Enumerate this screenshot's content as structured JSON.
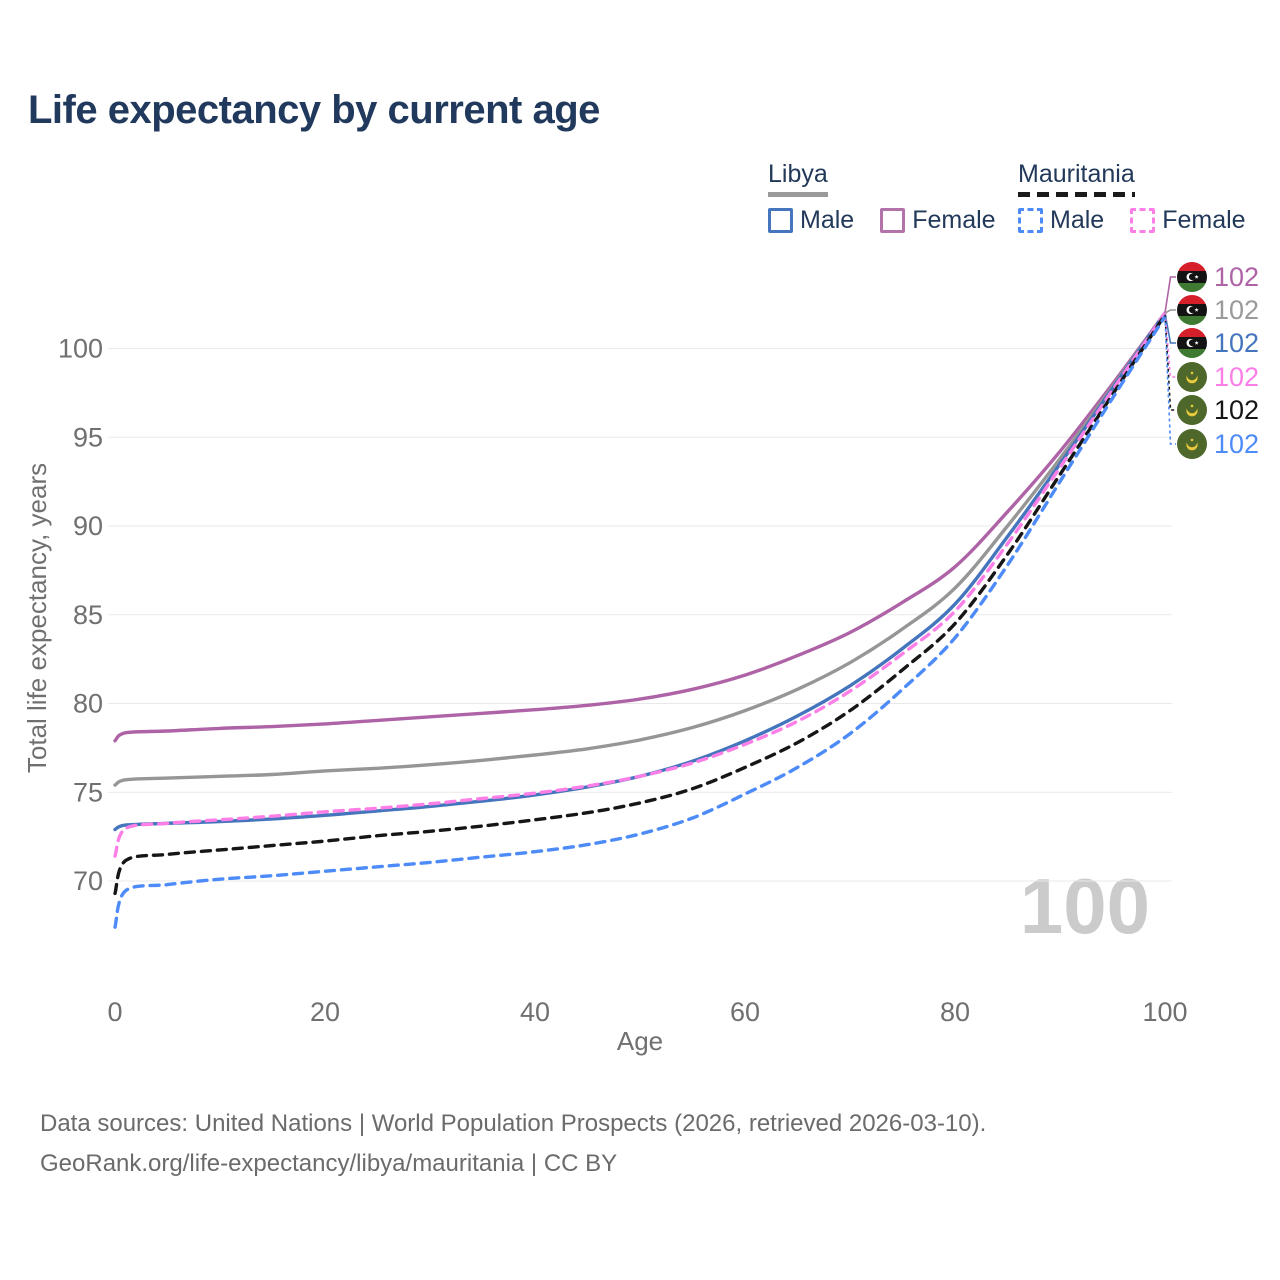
{
  "title": "Life expectancy by current age",
  "watermark": "100",
  "colors": {
    "title_text": "#20395c",
    "axis_text": "#707070",
    "grid": "#e9e9e9",
    "watermark": "#cbcbcb",
    "footer_text": "#6b6b6b"
  },
  "legend": {
    "groups": [
      {
        "label": "Libya",
        "line_style": "solid",
        "underline_color": "#9a9a9a",
        "items": [
          {
            "label": "Male",
            "color": "#4575bc",
            "dashed": false
          },
          {
            "label": "Female",
            "color": "#b273a8",
            "dashed": false
          }
        ]
      },
      {
        "label": "Mauritania",
        "line_style": "dashed",
        "underline_color": "#1a1a1a",
        "items": [
          {
            "label": "Male",
            "color": "#4d8bf8",
            "dashed": true
          },
          {
            "label": "Female",
            "color": "#fb7fe7",
            "dashed": true
          }
        ]
      }
    ]
  },
  "chart_data": {
    "type": "line",
    "title": "Life expectancy by current age",
    "xlabel": "Age",
    "ylabel": "Total life expectancy, years",
    "x_ticks": [
      0,
      20,
      40,
      60,
      80,
      100
    ],
    "y_ticks": [
      70,
      75,
      80,
      85,
      90,
      95,
      100
    ],
    "xlim": [
      0,
      100
    ],
    "ylim": [
      66,
      103
    ],
    "grid": "horizontal",
    "legend_position": "top-right",
    "ages": [
      0,
      1,
      5,
      10,
      15,
      20,
      25,
      30,
      35,
      40,
      45,
      50,
      55,
      60,
      65,
      70,
      75,
      80,
      85,
      90,
      95,
      100
    ],
    "series": [
      {
        "name": "Libya Female",
        "country": "Libya",
        "sex": "Female",
        "color": "#ae63a6",
        "dash": "solid",
        "end_value": 102,
        "values": [
          77.9,
          78.35,
          78.45,
          78.6,
          78.7,
          78.85,
          79.05,
          79.25,
          79.45,
          79.65,
          79.9,
          80.25,
          80.8,
          81.6,
          82.7,
          84.0,
          85.7,
          87.7,
          90.8,
          94.2,
          98.0,
          102
        ]
      },
      {
        "name": "Libya Both sexes",
        "country": "Libya",
        "sex": "Both",
        "color": "#969696",
        "dash": "solid",
        "end_value": 102,
        "values": [
          75.4,
          75.7,
          75.8,
          75.9,
          76.0,
          76.2,
          76.35,
          76.55,
          76.8,
          77.1,
          77.45,
          77.95,
          78.65,
          79.6,
          80.8,
          82.3,
          84.2,
          86.5,
          90.0,
          93.8,
          97.85,
          102
        ]
      },
      {
        "name": "Libya Male",
        "country": "Libya",
        "sex": "Male",
        "color": "#4575bc",
        "dash": "solid",
        "end_value": 102,
        "values": [
          72.9,
          73.15,
          73.25,
          73.35,
          73.5,
          73.7,
          73.95,
          74.2,
          74.5,
          74.85,
          75.3,
          75.9,
          76.75,
          77.9,
          79.3,
          81.0,
          83.1,
          85.6,
          89.4,
          93.5,
          97.75,
          102
        ]
      },
      {
        "name": "Mauritania Female",
        "country": "Mauritania",
        "sex": "Female",
        "color": "#fb7fe7",
        "dash": "dashed",
        "end_value": 102,
        "values": [
          71.4,
          72.95,
          73.25,
          73.45,
          73.65,
          73.9,
          74.1,
          74.35,
          74.65,
          74.95,
          75.35,
          75.9,
          76.65,
          77.7,
          79.0,
          80.7,
          82.8,
          85.2,
          89.0,
          93.3,
          97.65,
          102
        ]
      },
      {
        "name": "Mauritania Both sexes",
        "country": "Mauritania",
        "sex": "Both",
        "color": "#161616",
        "dash": "dashed",
        "end_value": 102,
        "values": [
          69.3,
          71.15,
          71.5,
          71.75,
          72.0,
          72.25,
          72.55,
          72.8,
          73.1,
          73.45,
          73.85,
          74.4,
          75.2,
          76.4,
          77.8,
          79.6,
          81.9,
          84.5,
          88.4,
          92.9,
          97.4,
          101.9
        ]
      },
      {
        "name": "Mauritania Male",
        "country": "Mauritania",
        "sex": "Male",
        "color": "#4d8bf8",
        "dash": "dashed",
        "end_value": 102,
        "values": [
          67.4,
          69.45,
          69.8,
          70.1,
          70.3,
          70.55,
          70.8,
          71.05,
          71.35,
          71.65,
          72.05,
          72.65,
          73.55,
          74.9,
          76.4,
          78.3,
          80.8,
          83.7,
          87.8,
          92.5,
          97.2,
          101.8
        ]
      }
    ]
  },
  "end_labels": [
    {
      "flag": "libya",
      "value": "102",
      "color": "#ae63a6"
    },
    {
      "flag": "libya",
      "value": "102",
      "color": "#9a9a9a"
    },
    {
      "flag": "libya",
      "value": "102",
      "color": "#4575bc"
    },
    {
      "flag": "mauritania",
      "value": "102",
      "color": "#fb7fe7"
    },
    {
      "flag": "mauritania",
      "value": "102",
      "color": "#161616"
    },
    {
      "flag": "mauritania",
      "value": "102",
      "color": "#4d8bf8"
    }
  ],
  "footer": {
    "line1": "Data sources: United Nations | World Population Prospects (2026, retrieved 2026-03-10).",
    "line2": "GeoRank.org/life-expectancy/libya/mauritania | CC BY"
  }
}
